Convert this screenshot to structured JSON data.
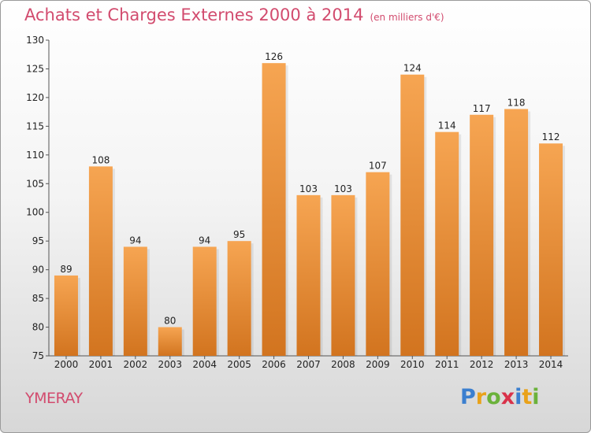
{
  "header": {
    "title": "Achats et Charges Externes 2000 à 2014",
    "unit": "(en milliers d'€)"
  },
  "footer": {
    "city": "YMERAY",
    "logo_letters": [
      "P",
      "r",
      "o",
      "x",
      "i",
      "t",
      "i"
    ],
    "logo_colors": [
      "#3b7fcf",
      "#e9a21a",
      "#6bb23b",
      "#d9324a",
      "#3b7fcf",
      "#e9a21a",
      "#6bb23b"
    ]
  },
  "colors": {
    "bar_top": "#f6a552",
    "bar_bottom": "#d2741f",
    "title": "#d24b6e"
  },
  "chart_data": {
    "type": "bar",
    "title": "Achats et Charges Externes 2000 à 2014",
    "categories": [
      "2000",
      "2001",
      "2002",
      "2003",
      "2004",
      "2005",
      "2006",
      "2007",
      "2008",
      "2009",
      "2010",
      "2011",
      "2012",
      "2013",
      "2014"
    ],
    "values": [
      89,
      108,
      94,
      80,
      94,
      95,
      126,
      103,
      103,
      107,
      124,
      114,
      117,
      118,
      112
    ],
    "ylim": [
      75,
      130
    ],
    "yticks": [
      75,
      80,
      85,
      90,
      95,
      100,
      105,
      110,
      115,
      120,
      125,
      130
    ],
    "grid": false,
    "legend": "none"
  }
}
